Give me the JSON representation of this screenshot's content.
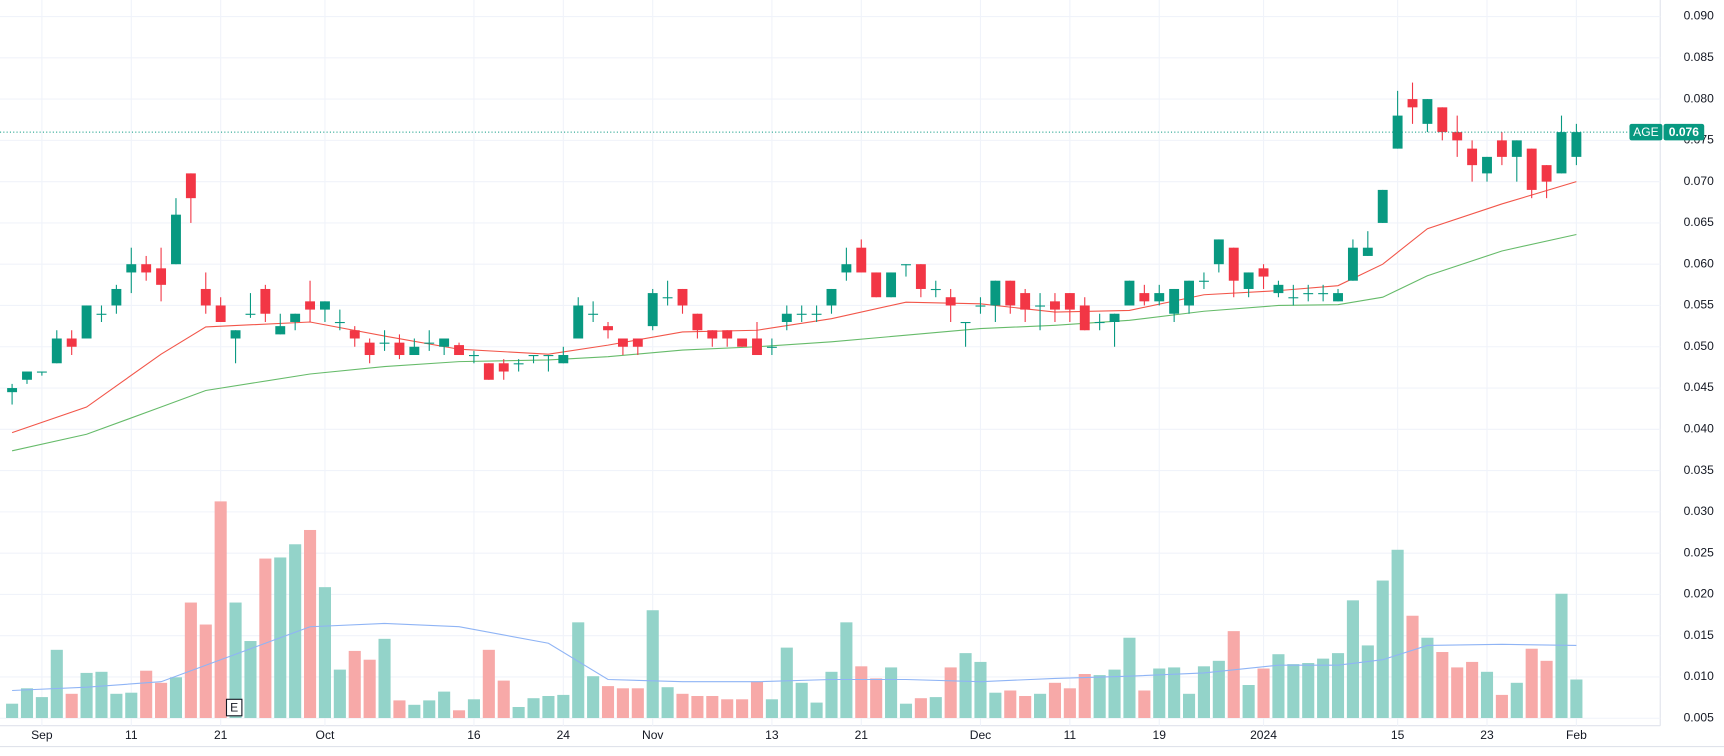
{
  "chart_data": {
    "type": "candlestick",
    "symbol": "AGE",
    "last_price": {
      "value": 0.076,
      "label": "0.076"
    },
    "categories": [
      null,
      null,
      "Sep",
      null,
      null,
      null,
      null,
      null,
      "11",
      null,
      null,
      null,
      null,
      null,
      "21",
      null,
      null,
      null,
      null,
      null,
      null,
      "Oct",
      null,
      null,
      null,
      null,
      null,
      null,
      null,
      null,
      null,
      "16",
      null,
      null,
      null,
      null,
      null,
      "24",
      null,
      null,
      null,
      null,
      null,
      "Nov",
      null,
      null,
      null,
      null,
      null,
      null,
      null,
      "13",
      null,
      null,
      null,
      null,
      null,
      "21",
      null,
      null,
      null,
      null,
      null,
      null,
      null,
      "Dec",
      null,
      null,
      null,
      null,
      null,
      "11",
      null,
      null,
      null,
      null,
      null,
      "19",
      null,
      null,
      null,
      null,
      null,
      null,
      "2024",
      null,
      null,
      null,
      null,
      null,
      null,
      null,
      null,
      "15",
      null,
      null,
      null,
      null,
      null,
      "23",
      null,
      null,
      null,
      null,
      null,
      "Feb"
    ],
    "open": [
      0.0445,
      0.046,
      0.047,
      0.048,
      0.051,
      0.051,
      0.054,
      0.055,
      0.059,
      0.06,
      0.0595,
      0.06,
      0.071,
      0.057,
      0.055,
      0.051,
      0.054,
      0.057,
      0.0515,
      0.053,
      0.0555,
      0.0545,
      0.053,
      0.052,
      0.0505,
      0.0505,
      0.0505,
      0.049,
      0.0505,
      0.05,
      0.0502,
      0.049,
      0.048,
      0.048,
      0.048,
      0.049,
      0.049,
      0.048,
      0.051,
      0.054,
      0.0525,
      0.051,
      0.051,
      0.0525,
      0.056,
      0.057,
      0.054,
      0.052,
      0.052,
      0.051,
      0.051,
      0.05,
      0.053,
      0.054,
      0.054,
      0.055,
      0.059,
      0.062,
      0.059,
      0.056,
      0.06,
      0.06,
      0.057,
      0.056,
      0.053,
      0.055,
      0.055,
      0.058,
      0.0565,
      0.055,
      0.0555,
      0.0565,
      0.055,
      0.053,
      0.053,
      0.055,
      0.0565,
      0.0555,
      0.054,
      0.055,
      0.058,
      0.06,
      0.062,
      0.057,
      0.0595,
      0.0565,
      0.056,
      0.0565,
      0.0565,
      0.0555,
      0.058,
      0.061,
      0.065,
      0.074,
      0.08,
      0.077,
      0.079,
      0.076,
      0.074,
      0.071,
      0.075,
      0.073,
      0.074,
      0.072,
      0.071,
      0.073
    ],
    "high": [
      0.0455,
      0.047,
      0.047,
      0.052,
      0.052,
      0.055,
      0.055,
      0.0575,
      0.062,
      0.061,
      0.062,
      0.068,
      0.071,
      0.059,
      0.056,
      0.052,
      0.0565,
      0.0575,
      0.054,
      0.054,
      0.058,
      0.0555,
      0.0545,
      0.0525,
      0.051,
      0.052,
      0.0515,
      0.051,
      0.052,
      0.051,
      0.0505,
      0.0495,
      0.048,
      0.0485,
      0.0485,
      0.049,
      0.049,
      0.05,
      0.056,
      0.0555,
      0.053,
      0.051,
      0.051,
      0.057,
      0.058,
      0.057,
      0.054,
      0.052,
      0.052,
      0.051,
      0.053,
      0.051,
      0.055,
      0.055,
      0.055,
      0.057,
      0.062,
      0.063,
      0.059,
      0.059,
      0.06,
      0.06,
      0.058,
      0.057,
      0.053,
      0.056,
      0.058,
      0.058,
      0.057,
      0.0565,
      0.0565,
      0.0565,
      0.056,
      0.054,
      0.054,
      0.058,
      0.0575,
      0.0575,
      0.057,
      0.058,
      0.059,
      0.063,
      0.062,
      0.059,
      0.06,
      0.058,
      0.0575,
      0.0575,
      0.0575,
      0.057,
      0.063,
      0.064,
      0.069,
      0.081,
      0.082,
      0.08,
      0.079,
      0.078,
      0.075,
      0.073,
      0.076,
      0.075,
      0.074,
      0.072,
      0.078,
      0.077
    ],
    "low": [
      0.043,
      0.0455,
      0.0465,
      0.048,
      0.049,
      0.051,
      0.053,
      0.054,
      0.0565,
      0.058,
      0.0555,
      0.06,
      0.065,
      0.054,
      0.053,
      0.048,
      0.0535,
      0.053,
      0.0515,
      0.052,
      0.053,
      0.053,
      0.052,
      0.05,
      0.048,
      0.0495,
      0.0485,
      0.049,
      0.0495,
      0.049,
      0.049,
      0.048,
      0.046,
      0.046,
      0.047,
      0.048,
      0.047,
      0.048,
      0.051,
      0.053,
      0.051,
      0.049,
      0.049,
      0.052,
      0.055,
      0.054,
      0.051,
      0.05,
      0.05,
      0.05,
      0.049,
      0.049,
      0.052,
      0.053,
      0.053,
      0.054,
      0.058,
      0.059,
      0.056,
      0.056,
      0.0585,
      0.056,
      0.056,
      0.053,
      0.05,
      0.054,
      0.053,
      0.054,
      0.053,
      0.052,
      0.053,
      0.053,
      0.052,
      0.052,
      0.05,
      0.055,
      0.055,
      0.055,
      0.053,
      0.054,
      0.057,
      0.059,
      0.056,
      0.056,
      0.057,
      0.056,
      0.055,
      0.0555,
      0.0555,
      0.0555,
      0.058,
      0.061,
      0.065,
      0.074,
      0.077,
      0.076,
      0.075,
      0.073,
      0.07,
      0.07,
      0.072,
      0.07,
      0.068,
      0.068,
      0.071,
      0.072
    ],
    "close": [
      0.045,
      0.047,
      0.047,
      0.051,
      0.05,
      0.055,
      0.054,
      0.057,
      0.06,
      0.059,
      0.0575,
      0.066,
      0.068,
      0.055,
      0.053,
      0.052,
      0.054,
      0.054,
      0.0525,
      0.054,
      0.0545,
      0.0555,
      0.053,
      0.051,
      0.049,
      0.0505,
      0.049,
      0.05,
      0.0505,
      0.051,
      0.049,
      0.049,
      0.046,
      0.047,
      0.048,
      0.049,
      0.049,
      0.049,
      0.055,
      0.054,
      0.052,
      0.05,
      0.05,
      0.0565,
      0.056,
      0.055,
      0.052,
      0.051,
      0.051,
      0.05,
      0.049,
      0.05,
      0.054,
      0.054,
      0.054,
      0.057,
      0.06,
      0.059,
      0.056,
      0.059,
      0.06,
      0.057,
      0.057,
      0.055,
      0.053,
      0.055,
      0.058,
      0.055,
      0.0545,
      0.055,
      0.0545,
      0.0545,
      0.052,
      0.053,
      0.054,
      0.058,
      0.0555,
      0.0565,
      0.057,
      0.058,
      0.058,
      0.063,
      0.058,
      0.059,
      0.0585,
      0.0575,
      0.056,
      0.0565,
      0.0565,
      0.0565,
      0.062,
      0.062,
      0.069,
      0.078,
      0.079,
      0.08,
      0.076,
      0.075,
      0.072,
      0.073,
      0.073,
      0.075,
      0.069,
      0.07,
      0.076,
      0.076
    ],
    "volume": [
      1.3,
      2.7,
      1.9,
      6.2,
      2.2,
      4.1,
      4.2,
      2.2,
      2.3,
      4.3,
      3.2,
      3.7,
      10.5,
      8.5,
      19.7,
      10.5,
      7.0,
      14.5,
      14.6,
      15.8,
      17.1,
      11.9,
      4.4,
      6.1,
      5.3,
      7.2,
      1.6,
      1.2,
      1.6,
      2.4,
      0.7,
      1.7,
      6.2,
      3.4,
      1.0,
      1.8,
      2.0,
      2.1,
      8.7,
      3.8,
      2.9,
      2.7,
      2.7,
      9.8,
      2.8,
      2.2,
      2.0,
      2.0,
      1.7,
      1.7,
      3.3,
      1.7,
      6.4,
      3.2,
      1.4,
      4.2,
      8.7,
      4.7,
      3.6,
      4.6,
      1.3,
      1.8,
      1.9,
      4.6,
      5.9,
      5.1,
      2.3,
      2.5,
      2.0,
      2.2,
      3.2,
      2.7,
      4.0,
      3.9,
      4.4,
      7.3,
      2.5,
      4.5,
      4.6,
      2.2,
      4.7,
      5.2,
      7.9,
      3.0,
      4.5,
      5.8,
      4.9,
      5.0,
      5.4,
      5.9,
      10.7,
      6.6,
      12.5,
      15.3,
      9.3,
      7.3,
      6.0,
      4.6,
      5.1,
      4.2,
      2.1,
      3.2,
      6.3,
      5.2,
      11.3,
      3.5
    ],
    "up_color": "#089981",
    "down_color": "#f23645",
    "volume_up_color": "#93d3c9",
    "volume_down_color": "#f7a9a8",
    "ma": [
      {
        "color": "#f2564a",
        "x": [
          0,
          5,
          10,
          13,
          20,
          25,
          30,
          36,
          40,
          45,
          50,
          55,
          60,
          65,
          70,
          75,
          80,
          85,
          89,
          92,
          95,
          100,
          105
        ],
        "values": [
          0.0396,
          0.0427,
          0.0491,
          0.0524,
          0.053,
          0.0513,
          0.0497,
          0.0491,
          0.0502,
          0.0518,
          0.052,
          0.0534,
          0.0554,
          0.0552,
          0.0542,
          0.0544,
          0.0563,
          0.0568,
          0.0574,
          0.06,
          0.0643,
          0.0673,
          0.07
        ]
      },
      {
        "color": "#66bb6a",
        "x": [
          0,
          5,
          10,
          13,
          20,
          25,
          30,
          36,
          40,
          45,
          50,
          55,
          60,
          65,
          70,
          75,
          80,
          85,
          89,
          92,
          95,
          100,
          105
        ],
        "values": [
          0.0374,
          0.0394,
          0.0427,
          0.0447,
          0.0467,
          0.0476,
          0.0482,
          0.0484,
          0.0488,
          0.0496,
          0.05,
          0.0506,
          0.0514,
          0.0522,
          0.0526,
          0.0532,
          0.0543,
          0.055,
          0.0551,
          0.056,
          0.0586,
          0.0616,
          0.0636
        ]
      }
    ],
    "volume_ma": {
      "color": "#8fb4f5",
      "x": [
        0,
        5,
        10,
        13,
        16,
        20,
        25,
        30,
        36,
        40,
        45,
        50,
        55,
        60,
        65,
        70,
        75,
        80,
        85,
        89,
        92,
        95,
        100,
        105
      ],
      "values": [
        2.5,
        2.8,
        3.3,
        4.8,
        6.3,
        8.3,
        8.6,
        8.3,
        6.8,
        3.5,
        3.3,
        3.3,
        3.5,
        3.5,
        3.3,
        3.6,
        3.8,
        4.1,
        4.8,
        4.8,
        5.3,
        6.6,
        6.7,
        6.6
      ]
    },
    "events": [
      {
        "label": "E"
      }
    ],
    "ylim": [
      0.0041,
      0.092
    ],
    "yticks": [
      {
        "value": 0.005,
        "label": "0.005"
      },
      {
        "value": 0.01,
        "label": "0.010"
      },
      {
        "value": 0.015,
        "label": "0.015"
      },
      {
        "value": 0.02,
        "label": "0.020"
      },
      {
        "value": 0.025,
        "label": "0.025"
      },
      {
        "value": 0.03,
        "label": "0.030"
      },
      {
        "value": 0.035,
        "label": "0.035"
      },
      {
        "value": 0.04,
        "label": "0.040"
      },
      {
        "value": 0.045,
        "label": "0.045"
      },
      {
        "value": 0.05,
        "label": "0.050"
      },
      {
        "value": 0.055,
        "label": "0.055"
      },
      {
        "value": 0.06,
        "label": "0.060"
      },
      {
        "value": 0.065,
        "label": "0.065"
      },
      {
        "value": 0.07,
        "label": "0.070"
      },
      {
        "value": 0.075,
        "label": "0.075"
      },
      {
        "value": 0.08,
        "label": "0.080"
      },
      {
        "value": 0.085,
        "label": "0.085"
      },
      {
        "value": 0.09,
        "label": "0.090"
      }
    ],
    "grid": true
  }
}
